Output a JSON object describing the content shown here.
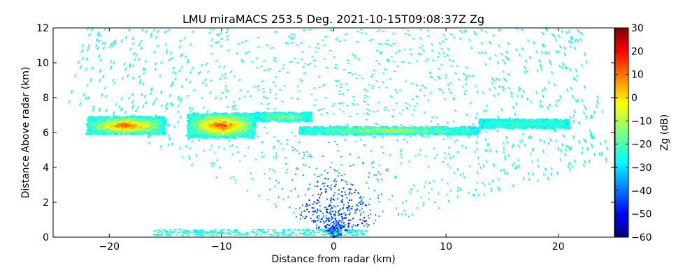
{
  "chart_data": {
    "type": "heatmap",
    "title": "LMU miraMACS 253.5 Deg. 2021-10-15T09:08:37Z  Zg",
    "xlabel": "Distance from radar (km)",
    "ylabel": "Distance Above radar  (km)",
    "xlim": [
      -25,
      25
    ],
    "ylim": [
      0,
      12
    ],
    "xticks": [
      "−20",
      "−10",
      "0",
      "10",
      "20"
    ],
    "xtick_values": [
      -20,
      -10,
      0,
      10,
      20
    ],
    "yticks": [
      "0",
      "2",
      "4",
      "6",
      "8",
      "10",
      "12"
    ],
    "ytick_values": [
      0,
      2,
      4,
      6,
      8,
      10,
      12
    ],
    "colorbar": {
      "label": "Zg (dB)",
      "range": [
        -60,
        30
      ],
      "ticks": [
        "30",
        "20",
        "10",
        "0",
        "−10",
        "−20",
        "−30",
        "−40",
        "−50",
        "−60"
      ],
      "tick_values": [
        30,
        20,
        10,
        0,
        -10,
        -20,
        -30,
        -40,
        -50,
        -60
      ],
      "colormap": "jet"
    },
    "scan": {
      "elevation_left_edge_deg": 162,
      "elevation_right_edge_deg": 10,
      "max_range_km": 25
    },
    "cloud_layers": [
      {
        "x_range": [
          -22,
          -15
        ],
        "height_center": 6.4,
        "thickness": 1.0,
        "peak_zg": 15
      },
      {
        "x_range": [
          -13,
          -7
        ],
        "height_center": 6.4,
        "thickness": 1.4,
        "peak_zg": 17
      },
      {
        "x_range": [
          -7,
          -2
        ],
        "height_center": 6.9,
        "thickness": 0.5,
        "peak_zg": -12
      },
      {
        "x_range": [
          -3,
          13
        ],
        "height_center": 6.1,
        "thickness": 0.45,
        "peak_zg": -10
      },
      {
        "x_range": [
          13,
          21
        ],
        "height_center": 6.5,
        "thickness": 0.5,
        "peak_zg": -22
      }
    ],
    "near_field_clutter_zg": -50,
    "background_noise_zg": [
      -30,
      -25
    ],
    "grid": false,
    "colors": {
      "jet_dark_blue": "#00007f",
      "jet_blue": "#0000ff",
      "jet_cyan": "#00ffff",
      "jet_yellow": "#ffff00",
      "jet_red": "#ff0000",
      "jet_dark_red": "#7f0000"
    }
  }
}
